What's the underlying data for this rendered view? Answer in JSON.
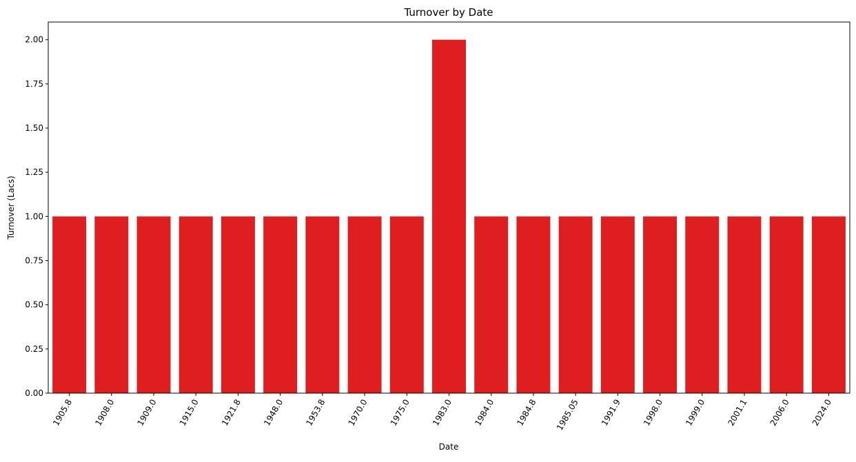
{
  "chart_data": {
    "type": "bar",
    "title": "Turnover by Date",
    "xlabel": "Date",
    "ylabel": "Turnover (Lacs)",
    "categories": [
      "1905.8",
      "1908.0",
      "1909.0",
      "1915.0",
      "1921.8",
      "1948.0",
      "1953.8",
      "1970.0",
      "1975.0",
      "1983.0",
      "1984.0",
      "1984.8",
      "1985.05",
      "1991.9",
      "1998.0",
      "1999.0",
      "2001.1",
      "2006.0",
      "2024.0"
    ],
    "values": [
      1,
      1,
      1,
      1,
      1,
      1,
      1,
      1,
      1,
      2,
      1,
      1,
      1,
      1,
      1,
      1,
      1,
      1,
      1
    ],
    "ylim": [
      0,
      2.1
    ],
    "yticks": [
      "0.00",
      "0.25",
      "0.50",
      "0.75",
      "1.00",
      "1.25",
      "1.50",
      "1.75",
      "2.00"
    ],
    "bar_color": "#df1f1f",
    "grid": false,
    "legend": "none"
  }
}
